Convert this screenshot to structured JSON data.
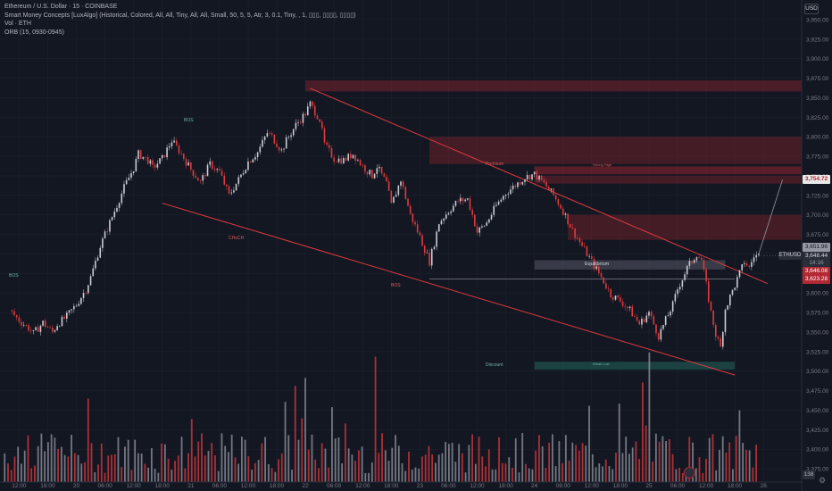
{
  "header": {
    "title": "Ethereum / U.S. Dollar · 15 · COINBASE",
    "indicator_1": "Smart Money Concepts [LuxAlgo] (Historical, Colored, All, All, Tiny, All, All, Small, 50, 5, 5, Atr, 3, 0.1, Tiny, , 1, ▯▯▯, ▯▯▯▯, ▯▯▯▯)",
    "indicator_2": "Vol · ETH",
    "indicator_3": "ORB (15, 0930-0945)"
  },
  "currency_badge": "USD",
  "symbol_tag": "ETHUSD",
  "price_tags": {
    "zone_top": "3,754.72",
    "high": "3,651.96",
    "current": "3,648.44",
    "countdown": "14:16",
    "open": "3,646.08",
    "orb_low": "3,623.28"
  },
  "volume_badge": "138",
  "zone_labels": {
    "premium": "Premium",
    "equilibrium": "Equilibrium",
    "discount": "Discount",
    "strong_high": "Strong High",
    "weak_low": "Weak Low"
  },
  "structure_labels": {
    "bos": "BOS",
    "choch": "CHoCH",
    "bos_red": "BOS"
  },
  "colors": {
    "background": "#131722",
    "grid": "#1e222d",
    "bull": "#c9ccd3",
    "bear": "#e03a3e",
    "premium_zone": "#b22833",
    "discount_zone": "#1e4d48",
    "teal": "#26a69a",
    "axis_text": "#787b86"
  },
  "chart_data": {
    "type": "candlestick",
    "symbol": "Ethereum / U.S. Dollar",
    "interval": "15",
    "exchange": "COINBASE",
    "y_axis": {
      "ticks": [
        3950,
        3925,
        3900,
        3875,
        3850,
        3825,
        3800,
        3775,
        3750,
        3725,
        3700,
        3675,
        3650,
        3625,
        3600,
        3575,
        3550,
        3525,
        3500,
        3475,
        3450,
        3425,
        3400,
        3375
      ],
      "tick_labels": [
        "3,950.00",
        "3,925.00",
        "3,900.00",
        "3,875.00",
        "3,850.00",
        "3,825.00",
        "3,800.00",
        "3,775.00",
        "3,750.00",
        "3,725.00",
        "3,700.00",
        "3,675.00",
        "3,650.00",
        "3,625.00",
        "3,600.00",
        "3,575.00",
        "3,550.00",
        "3,525.00",
        "3,500.00",
        "3,475.00",
        "3,450.00",
        "3,425.00",
        "3,400.00",
        "3,375.00"
      ],
      "range": [
        3358,
        3975
      ]
    },
    "x_axis": {
      "tick_labels": [
        "12:00",
        "18:00",
        "20",
        "06:00",
        "12:00",
        "18:00",
        "21",
        "06:00",
        "12:00",
        "18:00",
        "22",
        "06:00",
        "12:00",
        "18:00",
        "23",
        "06:00",
        "12:00",
        "18:00",
        "24",
        "06:00",
        "12:00",
        "18:00",
        "25",
        "06:00",
        "12:00",
        "18:00",
        "26"
      ],
      "range_hours": [
        -4,
        164
      ]
    },
    "price_path": [
      [
        -2,
        3578
      ],
      [
        0,
        3565
      ],
      [
        2,
        3555
      ],
      [
        3,
        3548
      ],
      [
        5,
        3562
      ],
      [
        7,
        3550
      ],
      [
        8,
        3560
      ],
      [
        10,
        3570
      ],
      [
        12,
        3585
      ],
      [
        14,
        3605
      ],
      [
        15,
        3620
      ],
      [
        17,
        3660
      ],
      [
        19,
        3690
      ],
      [
        20,
        3705
      ],
      [
        22,
        3735
      ],
      [
        24,
        3760
      ],
      [
        25,
        3778
      ],
      [
        27,
        3770
      ],
      [
        28,
        3760
      ],
      [
        30,
        3772
      ],
      [
        32,
        3795
      ],
      [
        34,
        3778
      ],
      [
        36,
        3758
      ],
      [
        38,
        3742
      ],
      [
        40,
        3765
      ],
      [
        42,
        3755
      ],
      [
        44,
        3725
      ],
      [
        46,
        3745
      ],
      [
        48,
        3768
      ],
      [
        50,
        3780
      ],
      [
        52,
        3805
      ],
      [
        53,
        3800
      ],
      [
        55,
        3782
      ],
      [
        56,
        3795
      ],
      [
        58,
        3815
      ],
      [
        60,
        3830
      ],
      [
        61,
        3842
      ],
      [
        63,
        3822
      ],
      [
        64,
        3790
      ],
      [
        66,
        3772
      ],
      [
        68,
        3770
      ],
      [
        70,
        3778
      ],
      [
        72,
        3762
      ],
      [
        74,
        3750
      ],
      [
        75,
        3762
      ],
      [
        77,
        3740
      ],
      [
        78,
        3712
      ],
      [
        80,
        3745
      ],
      [
        82,
        3700
      ],
      [
        84,
        3672
      ],
      [
        86,
        3640
      ],
      [
        87,
        3664
      ],
      [
        88,
        3690
      ],
      [
        90,
        3705
      ],
      [
        92,
        3718
      ],
      [
        94,
        3720
      ],
      [
        95,
        3700
      ],
      [
        96,
        3678
      ],
      [
        98,
        3690
      ],
      [
        100,
        3712
      ],
      [
        102,
        3728
      ],
      [
        104,
        3738
      ],
      [
        106,
        3748
      ],
      [
        108,
        3752
      ],
      [
        110,
        3740
      ],
      [
        112,
        3725
      ],
      [
        114,
        3705
      ],
      [
        116,
        3680
      ],
      [
        117,
        3670
      ],
      [
        118,
        3660
      ],
      [
        120,
        3640
      ],
      [
        122,
        3620
      ],
      [
        124,
        3598
      ],
      [
        126,
        3590
      ],
      [
        128,
        3578
      ],
      [
        130,
        3560
      ],
      [
        132,
        3575
      ],
      [
        134,
        3545
      ],
      [
        136,
        3572
      ],
      [
        137,
        3585
      ],
      [
        138,
        3605
      ],
      [
        140,
        3632
      ],
      [
        142,
        3650
      ],
      [
        143,
        3642
      ],
      [
        144,
        3610
      ],
      [
        145,
        3575
      ],
      [
        146,
        3547
      ],
      [
        147,
        3530
      ],
      [
        148,
        3580
      ],
      [
        150,
        3610
      ],
      [
        151,
        3625
      ],
      [
        152,
        3640
      ],
      [
        153,
        3632
      ],
      [
        154,
        3647
      ],
      [
        155,
        3648
      ]
    ],
    "annotations": {
      "premium_zone": [
        3752,
        3762
      ],
      "discount_zone": [
        3502,
        3512
      ],
      "upper_zone": [
        3858,
        3872
      ],
      "strong_high": 3754.72,
      "weak_low": 3508
    }
  }
}
